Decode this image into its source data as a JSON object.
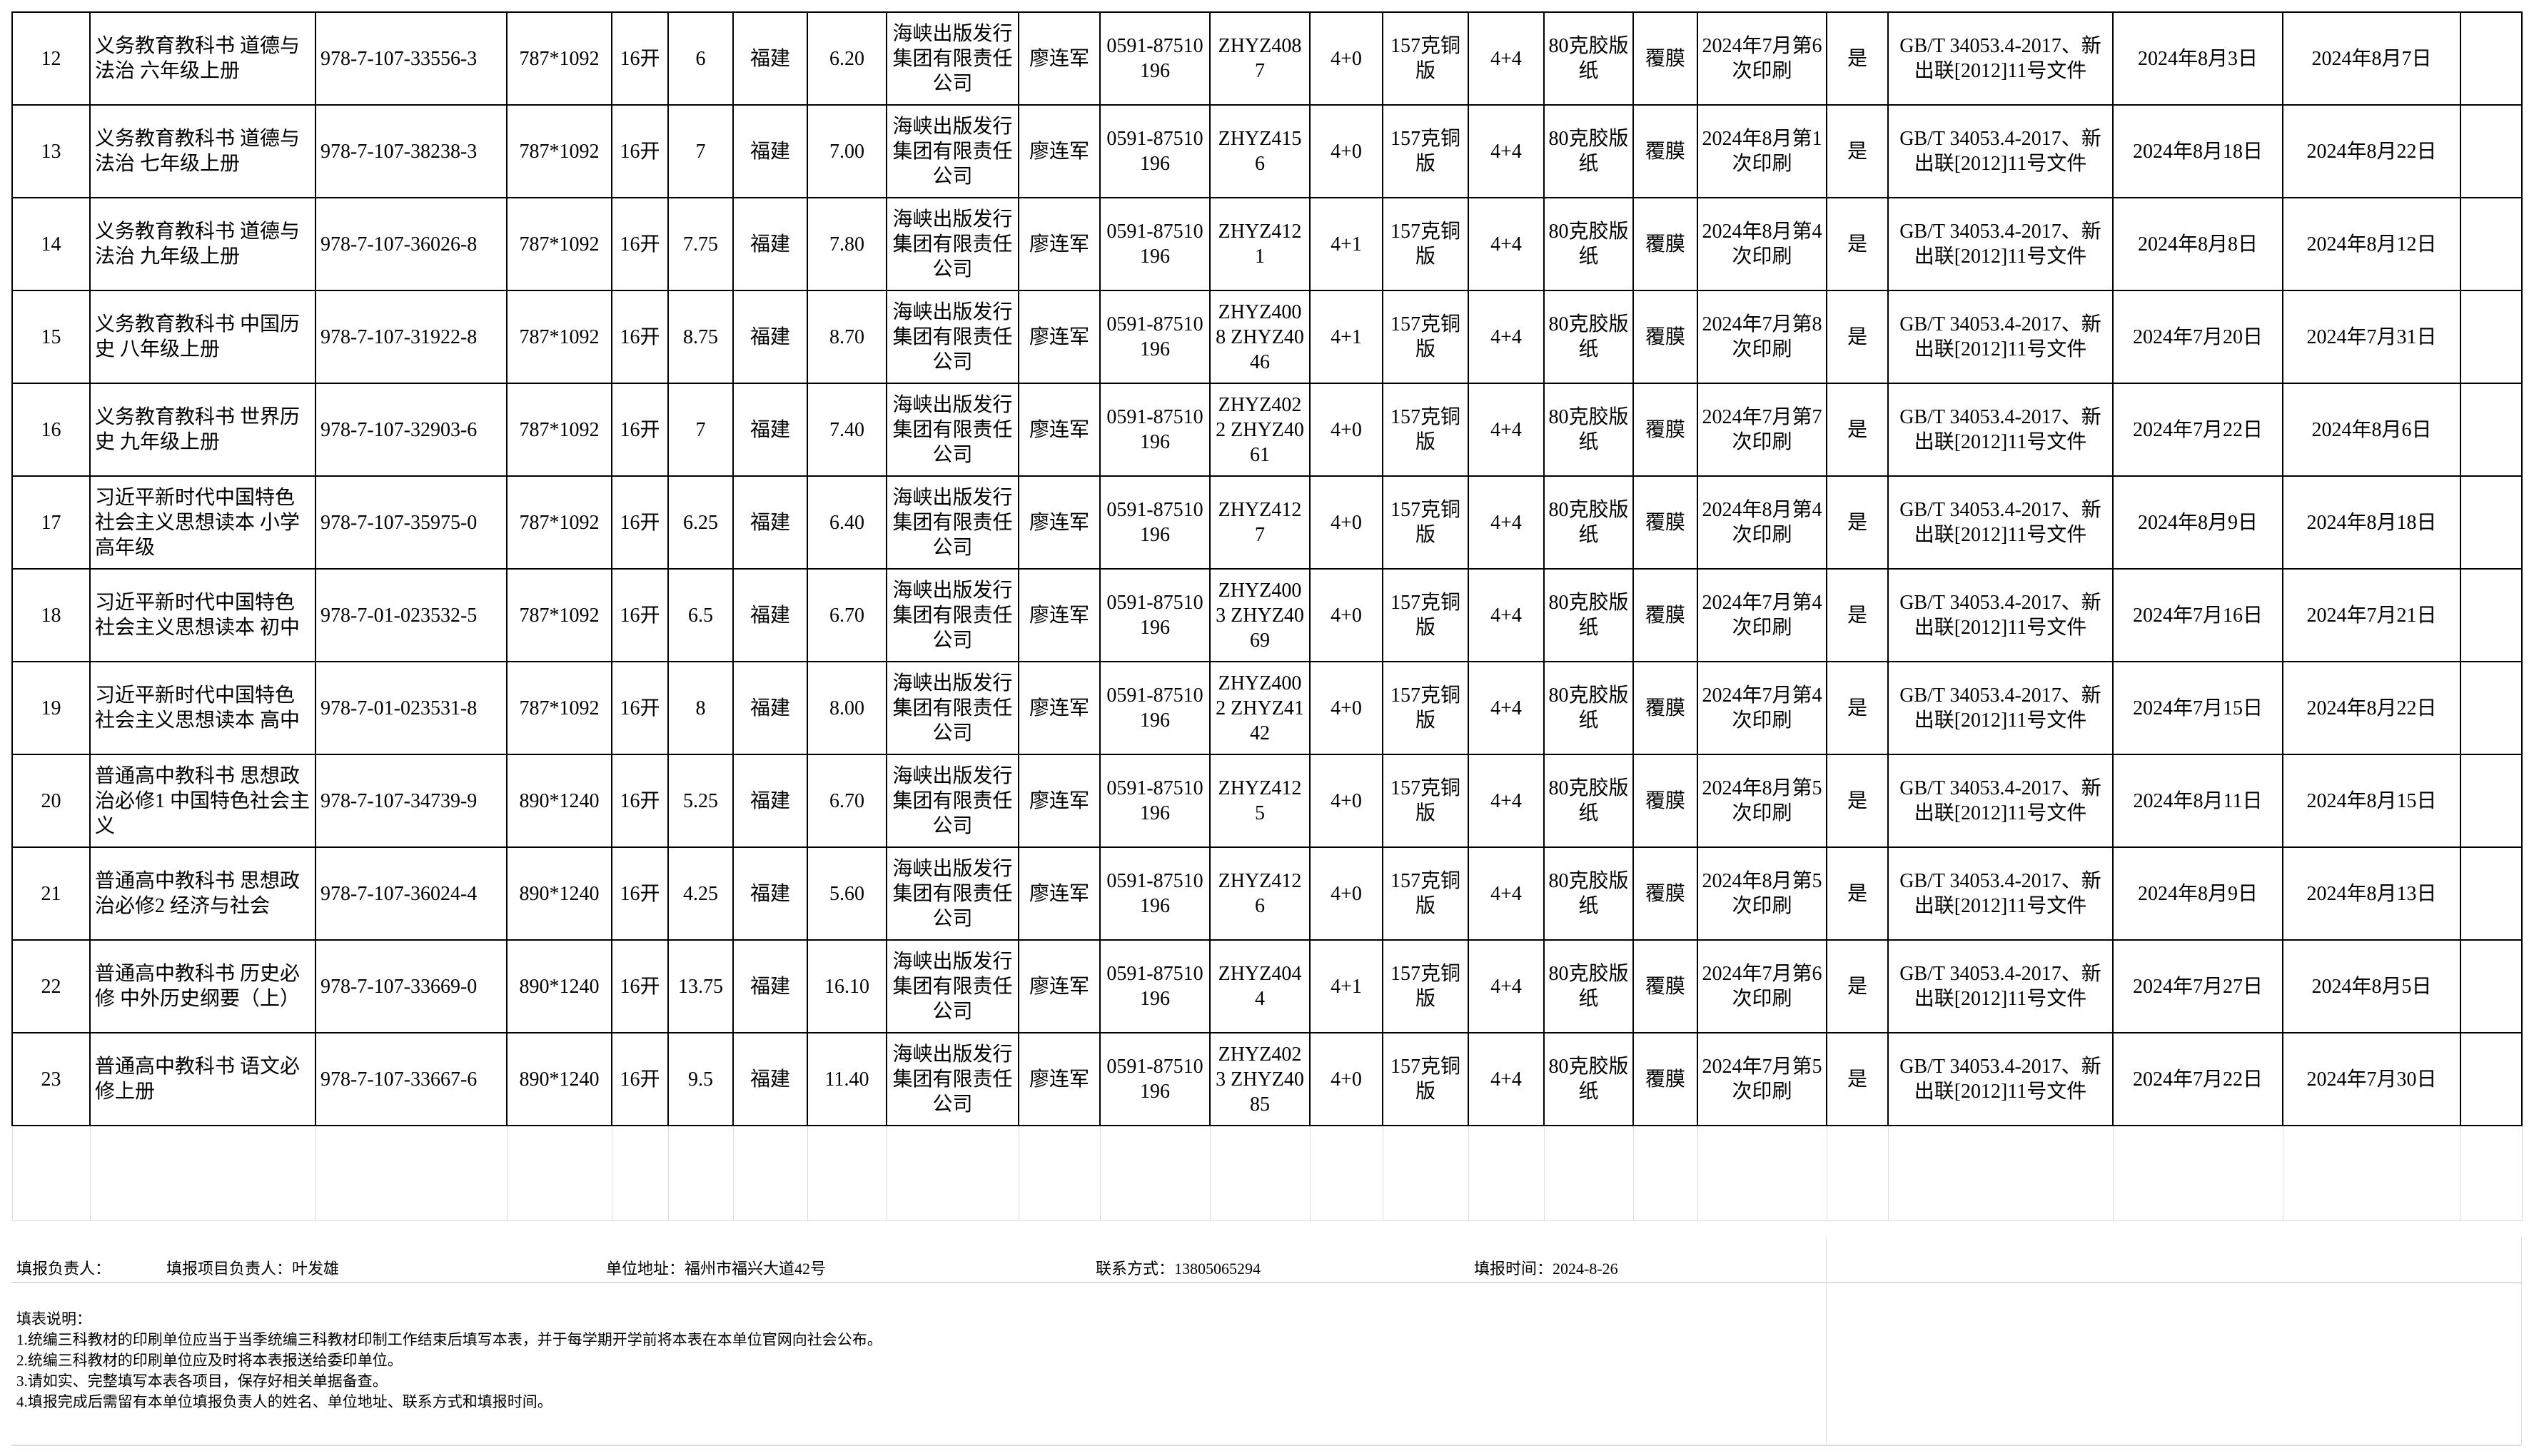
{
  "rows": [
    [
      "12",
      "义务教育教科书 道德与法治 六年级上册",
      "978-7-107-33556-3",
      "787*1092",
      "16开",
      "6",
      "福建",
      "6.20",
      "海峡出版发行集团有限责任公司",
      "廖连军",
      "0591-87510196",
      "ZHYZ4087",
      "4+0",
      "157克铜版",
      "4+4",
      "80克胶版纸",
      "覆膜",
      "2024年7月第6次印刷",
      "是",
      "GB/T 34053.4-2017、新出联[2012]11号文件",
      "2024年8月3日",
      "2024年8月7日",
      ""
    ],
    [
      "13",
      "义务教育教科书 道德与法治 七年级上册",
      "978-7-107-38238-3",
      "787*1092",
      "16开",
      "7",
      "福建",
      "7.00",
      "海峡出版发行集团有限责任公司",
      "廖连军",
      "0591-87510196",
      "ZHYZ4156",
      "4+0",
      "157克铜版",
      "4+4",
      "80克胶版纸",
      "覆膜",
      "2024年8月第1次印刷",
      "是",
      "GB/T 34053.4-2017、新出联[2012]11号文件",
      "2024年8月18日",
      "2024年8月22日",
      ""
    ],
    [
      "14",
      "义务教育教科书 道德与法治 九年级上册",
      "978-7-107-36026-8",
      "787*1092",
      "16开",
      "7.75",
      "福建",
      "7.80",
      "海峡出版发行集团有限责任公司",
      "廖连军",
      "0591-87510196",
      "ZHYZ4121",
      "4+1",
      "157克铜版",
      "4+4",
      "80克胶版纸",
      "覆膜",
      "2024年8月第4次印刷",
      "是",
      "GB/T 34053.4-2017、新出联[2012]11号文件",
      "2024年8月8日",
      "2024年8月12日",
      ""
    ],
    [
      "15",
      "义务教育教科书 中国历史 八年级上册",
      "978-7-107-31922-8",
      "787*1092",
      "16开",
      "8.75",
      "福建",
      "8.70",
      "海峡出版发行集团有限责任公司",
      "廖连军",
      "0591-87510196",
      "ZHYZ4008 ZHYZ4046",
      "4+1",
      "157克铜版",
      "4+4",
      "80克胶版纸",
      "覆膜",
      "2024年7月第8次印刷",
      "是",
      "GB/T 34053.4-2017、新出联[2012]11号文件",
      "2024年7月20日",
      "2024年7月31日",
      ""
    ],
    [
      "16",
      "义务教育教科书 世界历史 九年级上册",
      "978-7-107-32903-6",
      "787*1092",
      "16开",
      "7",
      "福建",
      "7.40",
      "海峡出版发行集团有限责任公司",
      "廖连军",
      "0591-87510196",
      "ZHYZ4022 ZHYZ4061",
      "4+0",
      "157克铜版",
      "4+4",
      "80克胶版纸",
      "覆膜",
      "2024年7月第7次印刷",
      "是",
      "GB/T 34053.4-2017、新出联[2012]11号文件",
      "2024年7月22日",
      "2024年8月6日",
      ""
    ],
    [
      "17",
      "习近平新时代中国特色社会主义思想读本 小学高年级",
      "978-7-107-35975-0",
      "787*1092",
      "16开",
      "6.25",
      "福建",
      "6.40",
      "海峡出版发行集团有限责任公司",
      "廖连军",
      "0591-87510196",
      "ZHYZ4127",
      "4+0",
      "157克铜版",
      "4+4",
      "80克胶版纸",
      "覆膜",
      "2024年8月第4次印刷",
      "是",
      "GB/T 34053.4-2017、新出联[2012]11号文件",
      "2024年8月9日",
      "2024年8月18日",
      ""
    ],
    [
      "18",
      "习近平新时代中国特色社会主义思想读本 初中",
      "978-7-01-023532-5",
      "787*1092",
      "16开",
      "6.5",
      "福建",
      "6.70",
      "海峡出版发行集团有限责任公司",
      "廖连军",
      "0591-87510196",
      "ZHYZ4003 ZHYZ4069",
      "4+0",
      "157克铜版",
      "4+4",
      "80克胶版纸",
      "覆膜",
      "2024年7月第4次印刷",
      "是",
      "GB/T 34053.4-2017、新出联[2012]11号文件",
      "2024年7月16日",
      "2024年7月21日",
      ""
    ],
    [
      "19",
      "习近平新时代中国特色社会主义思想读本 高中",
      "978-7-01-023531-8",
      "787*1092",
      "16开",
      "8",
      "福建",
      "8.00",
      "海峡出版发行集团有限责任公司",
      "廖连军",
      "0591-87510196",
      "ZHYZ4002 ZHYZ4142",
      "4+0",
      "157克铜版",
      "4+4",
      "80克胶版纸",
      "覆膜",
      "2024年7月第4次印刷",
      "是",
      "GB/T 34053.4-2017、新出联[2012]11号文件",
      "2024年7月15日",
      "2024年8月22日",
      ""
    ],
    [
      "20",
      "普通高中教科书 思想政治必修1 中国特色社会主义",
      "978-7-107-34739-9",
      "890*1240",
      "16开",
      "5.25",
      "福建",
      "6.70",
      "海峡出版发行集团有限责任公司",
      "廖连军",
      "0591-87510196",
      "ZHYZ4125",
      "4+0",
      "157克铜版",
      "4+4",
      "80克胶版纸",
      "覆膜",
      "2024年8月第5次印刷",
      "是",
      "GB/T 34053.4-2017、新出联[2012]11号文件",
      "2024年8月11日",
      "2024年8月15日",
      ""
    ],
    [
      "21",
      "普通高中教科书 思想政治必修2 经济与社会",
      "978-7-107-36024-4",
      "890*1240",
      "16开",
      "4.25",
      "福建",
      "5.60",
      "海峡出版发行集团有限责任公司",
      "廖连军",
      "0591-87510196",
      "ZHYZ4126",
      "4+0",
      "157克铜版",
      "4+4",
      "80克胶版纸",
      "覆膜",
      "2024年8月第5次印刷",
      "是",
      "GB/T 34053.4-2017、新出联[2012]11号文件",
      "2024年8月9日",
      "2024年8月13日",
      ""
    ],
    [
      "22",
      "普通高中教科书 历史必修 中外历史纲要（上）",
      "978-7-107-33669-0",
      "890*1240",
      "16开",
      "13.75",
      "福建",
      "16.10",
      "海峡出版发行集团有限责任公司",
      "廖连军",
      "0591-87510196",
      "ZHYZ4044",
      "4+1",
      "157克铜版",
      "4+4",
      "80克胶版纸",
      "覆膜",
      "2024年7月第6次印刷",
      "是",
      "GB/T 34053.4-2017、新出联[2012]11号文件",
      "2024年7月27日",
      "2024年8月5日",
      ""
    ],
    [
      "23",
      "普通高中教科书 语文必修上册",
      "978-7-107-33667-6",
      "890*1240",
      "16开",
      "9.5",
      "福建",
      "11.40",
      "海峡出版发行集团有限责任公司",
      "廖连军",
      "0591-87510196",
      "ZHYZ4023 ZHYZ4085",
      "4+0",
      "157克铜版",
      "4+4",
      "80克胶版纸",
      "覆膜",
      "2024年7月第5次印刷",
      "是",
      "GB/T 34053.4-2017、新出联[2012]11号文件",
      "2024年7月22日",
      "2024年7月30日",
      ""
    ]
  ],
  "footer": {
    "reporter": "填报负责人：",
    "project_lead": "填报项目负责人：叶发雄",
    "address": "单位地址：福州市福兴大道42号",
    "contact": "联系方式：13805065294",
    "report_time": "填报时间：2024-8-26"
  },
  "notes": {
    "title": "填表说明：",
    "items": [
      "1.统编三科教材的印刷单位应当于当季统编三科教材印制工作结束后填写本表，并于每学期开学前将本表在本单位官网向社会公布。",
      "2.统编三科教材的印刷单位应及时将本表报送给委印单位。",
      "3.请如实、完整填写本表各项目，保存好相关单据备查。",
      "4.填报完成后需留有本单位填报负责人的姓名、单位地址、联系方式和填报时间。"
    ]
  }
}
